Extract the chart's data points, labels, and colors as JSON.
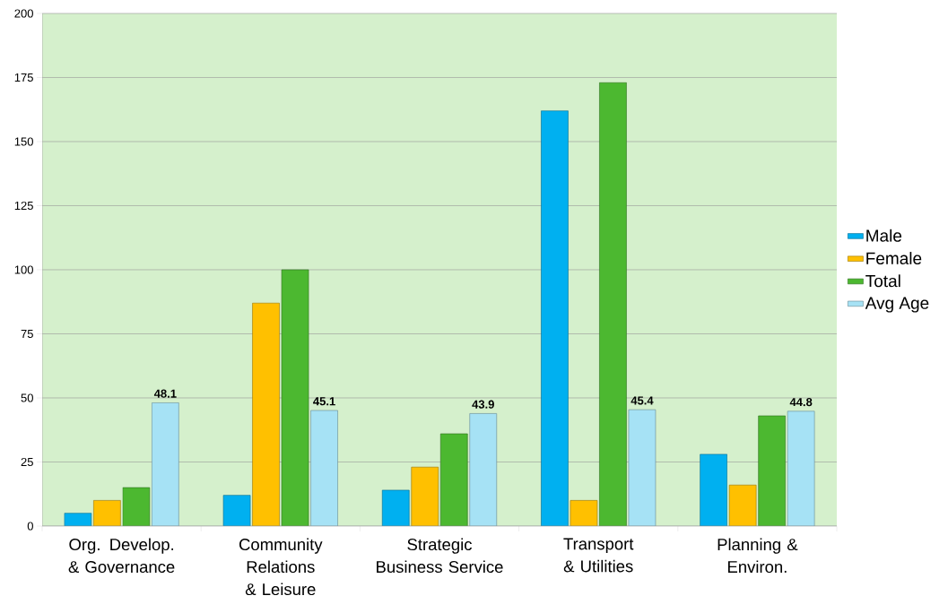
{
  "chart_data": {
    "type": "bar",
    "categories": [
      "Org. Develop. & Governance",
      "Community Relations & Leisure",
      "Strategic Business Service",
      "Transport & Utilities",
      "Planning & Environ."
    ],
    "series": [
      {
        "name": "Male",
        "color": "#00b0f0",
        "values": [
          5,
          12,
          14,
          162,
          28
        ]
      },
      {
        "name": "Female",
        "color": "#ffc000",
        "values": [
          10,
          87,
          23,
          10,
          16
        ]
      },
      {
        "name": "Total",
        "color": "#4cb830",
        "values": [
          15,
          100,
          36,
          173,
          43
        ]
      },
      {
        "name": "Avg Age",
        "color": "#a6e2f5",
        "values": [
          48.1,
          45.1,
          43.9,
          45.4,
          44.8
        ],
        "value_labels": [
          "48.1",
          "45.1",
          "43.9",
          "45.4",
          "44.8"
        ]
      }
    ],
    "ylim": [
      0,
      200
    ],
    "yticks": [
      0,
      25,
      50,
      75,
      100,
      125,
      150,
      175,
      200
    ],
    "grid": "y",
    "legend": "right"
  }
}
